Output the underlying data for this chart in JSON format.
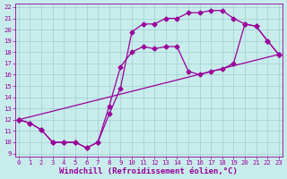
{
  "xlabel": "Windchill (Refroidissement éolien,°C)",
  "xlim": [
    0,
    23
  ],
  "ylim": [
    9,
    22
  ],
  "xticks": [
    0,
    1,
    2,
    3,
    4,
    5,
    6,
    7,
    8,
    9,
    10,
    11,
    12,
    13,
    14,
    15,
    16,
    17,
    18,
    19,
    20,
    21,
    22,
    23
  ],
  "yticks": [
    9,
    10,
    11,
    12,
    13,
    14,
    15,
    16,
    17,
    18,
    19,
    20,
    21,
    22
  ],
  "line_color": "#990099",
  "bg_color": "#c8ecec",
  "grid_color": "#9dcfcf",
  "line1_x": [
    0,
    1,
    2,
    3,
    4,
    5,
    6,
    7,
    8,
    9,
    10,
    11,
    12,
    13,
    14,
    15,
    16,
    17,
    18,
    19,
    20,
    21,
    22,
    23
  ],
  "line1_y": [
    12,
    11.7,
    11.1,
    10.0,
    10.0,
    10.0,
    9.5,
    10.0,
    12.5,
    14.8,
    19.8,
    20.5,
    20.5,
    21.0,
    21.0,
    21.5,
    21.5,
    21.7,
    21.7,
    21.0,
    20.5,
    20.3,
    19.0,
    17.8
  ],
  "line2_x": [
    0,
    1,
    2,
    3,
    4,
    5,
    6,
    7,
    8,
    9,
    10,
    11,
    12,
    13,
    14,
    15,
    16,
    17,
    18,
    19,
    20,
    21,
    22,
    23
  ],
  "line2_y": [
    12,
    11.7,
    11.1,
    10.0,
    10.0,
    10.0,
    9.5,
    10.0,
    13.2,
    16.7,
    18.0,
    18.5,
    18.3,
    18.5,
    18.5,
    16.3,
    16.0,
    16.3,
    16.5,
    17.0,
    20.5,
    20.3,
    19.0,
    17.8
  ],
  "line3_x": [
    0,
    23
  ],
  "line3_y": [
    12,
    17.8
  ],
  "marker_size": 2.5,
  "linewidth": 0.9,
  "tick_fontsize": 5.2,
  "xlabel_fontsize": 6.5
}
